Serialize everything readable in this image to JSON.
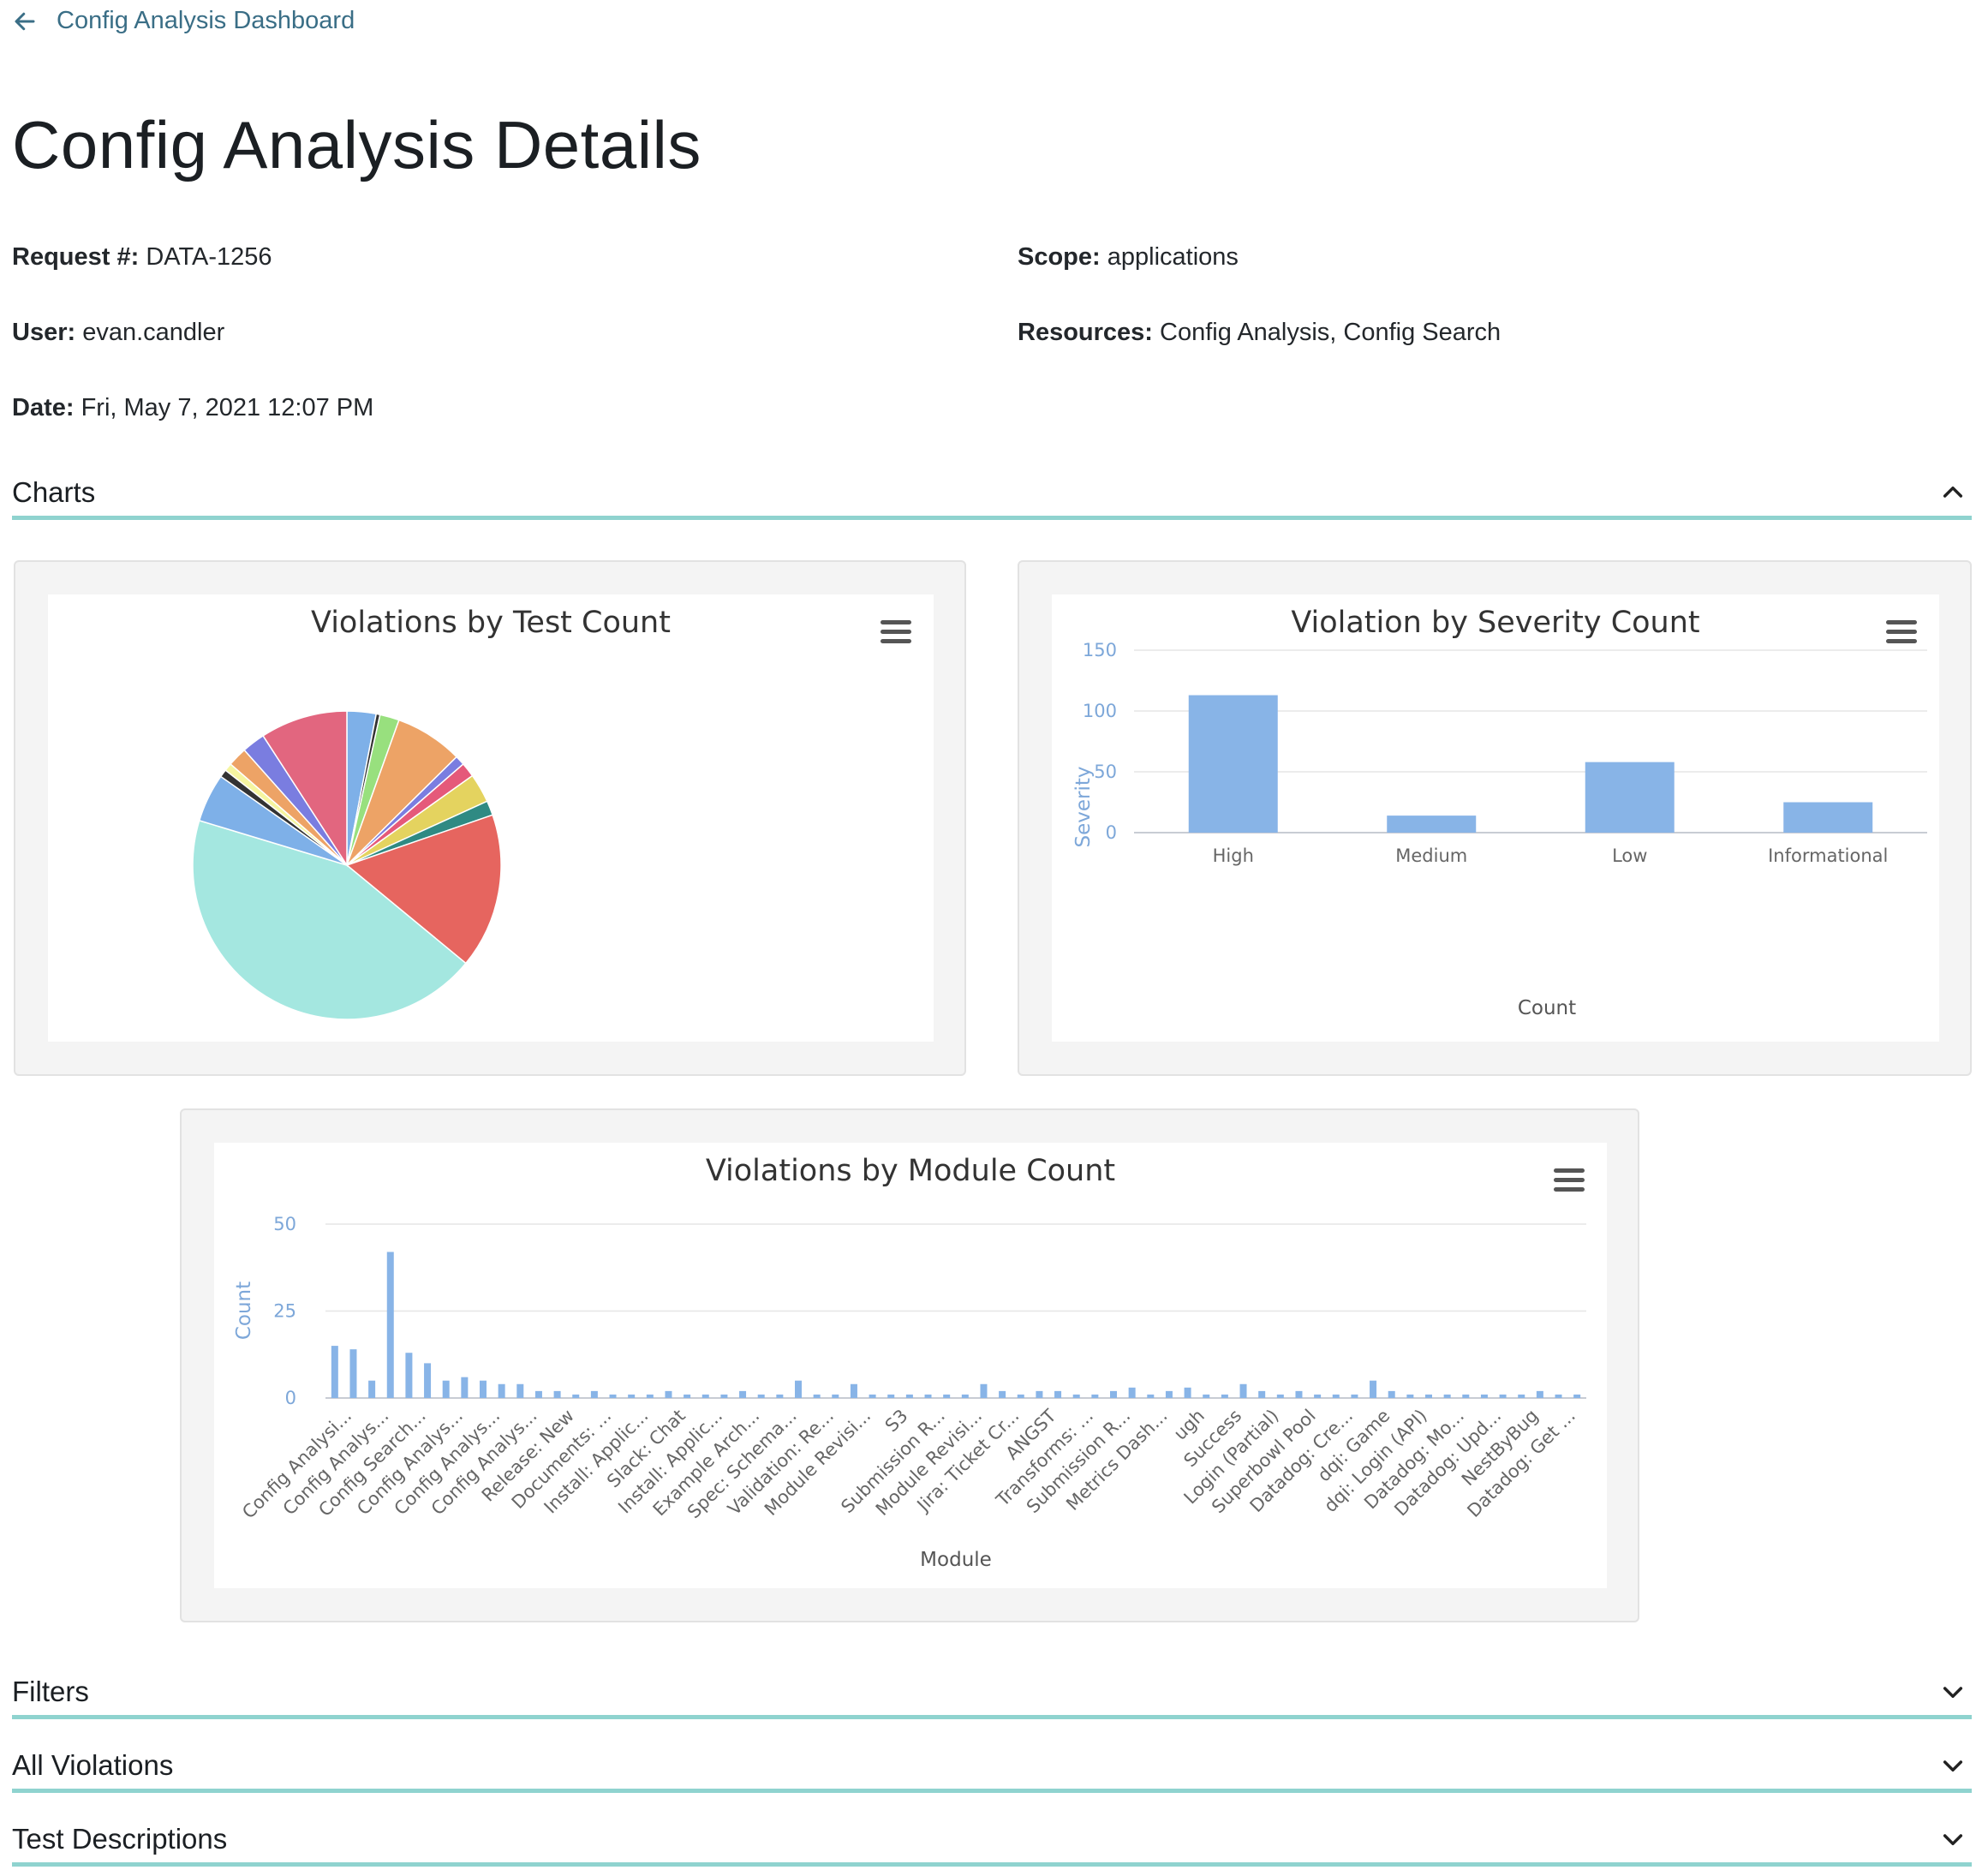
{
  "nav": {
    "back_label": "Config Analysis Dashboard"
  },
  "page": {
    "title": "Config Analysis Details"
  },
  "details": {
    "request_label": "Request #:",
    "request_value": "DATA-1256",
    "user_label": "User:",
    "user_value": "evan.candler",
    "date_label": "Date:",
    "date_value": "Fri, May 7, 2021 12:07 PM",
    "scope_label": "Scope:",
    "scope_value": "applications",
    "resources_label": "Resources:",
    "resources_value": "Config Analysis, Config Search"
  },
  "sections": {
    "charts": "Charts",
    "filters": "Filters",
    "violations": "All Violations",
    "descriptions": "Test Descriptions"
  },
  "colors": {
    "accent": "#8fd3cf",
    "bar": "#88b4e7",
    "link": "#3a6e86"
  },
  "chart_data": [
    {
      "type": "pie",
      "title": "Violations by Test Count",
      "values": [
        3,
        0.4,
        2,
        7,
        1,
        1.5,
        3,
        1.5,
        16,
        43,
        5,
        0.8,
        0.8,
        2,
        2.4,
        9
      ],
      "colors": [
        "#7eb0e8",
        "#333333",
        "#98e07e",
        "#eda366",
        "#7a7de0",
        "#e5597a",
        "#e4d35f",
        "#2f8a83",
        "#e6655f",
        "#a4e7e0",
        "#7eb0e8",
        "#333333",
        "#f5f5a0",
        "#eda366",
        "#7a7de0",
        "#e2667f"
      ]
    },
    {
      "type": "bar",
      "title": "Violation by Severity Count",
      "categories": [
        "High",
        "Medium",
        "Low",
        "Informational"
      ],
      "values": [
        113,
        14,
        58,
        25
      ],
      "xlabel": "Count",
      "ylabel": "Severity",
      "ylim": [
        0,
        150
      ],
      "yticks": [
        0,
        50,
        100,
        150
      ],
      "grid": true
    },
    {
      "type": "bar",
      "title": "Violations by Module Count",
      "xlabel": "Module",
      "ylabel": "Count",
      "ylim": [
        0,
        50
      ],
      "yticks": [
        0,
        25,
        50
      ],
      "grid": true,
      "labeled_categories": [
        "Config Analysi...",
        "Config Analys...",
        "Config Search...",
        "Config Analys...",
        "Config Analys...",
        "Config Analys...",
        "Release: New",
        "Documents: ...",
        "Install: Applic...",
        "Slack: Chat",
        "Install: Applic...",
        "Example Arch...",
        "Spec: Schema...",
        "Validation: Re...",
        "Module Revisi...",
        "S3",
        "Submission R...",
        "Module Revisi...",
        "Jira: Ticket Cr...",
        "ANGST",
        "Transforms: ...",
        "Submission R...",
        "Metrics Dash...",
        "ugh",
        "Success",
        "Login (Partial)",
        "Superbowl Pool",
        "Datadog: Cre...",
        "dqi: Game",
        "dqi: Login (API)",
        "Datadog: Mo...",
        "Datadog: Upd...",
        "NestByBug",
        "Datadog: Get ..."
      ],
      "values": [
        15,
        14,
        5,
        42,
        13,
        10,
        5,
        6,
        5,
        4,
        4,
        2,
        2,
        1,
        2,
        1,
        1,
        1,
        2,
        1,
        1,
        1,
        2,
        1,
        1,
        5,
        1,
        1,
        4,
        1,
        1,
        1,
        1,
        1,
        1,
        4,
        2,
        1,
        2,
        2,
        1,
        1,
        2,
        3,
        1,
        2,
        3,
        1,
        1,
        4,
        2,
        1,
        2,
        1,
        1,
        1,
        5,
        2,
        1,
        1,
        1,
        1,
        1,
        1,
        1,
        2,
        1,
        1
      ]
    }
  ]
}
